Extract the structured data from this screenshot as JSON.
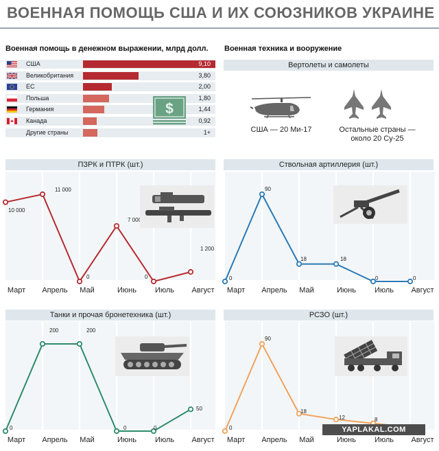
{
  "title": "ВОЕННАЯ ПОМОЩЬ США И ИХ СОЮЗНИКОВ УКРАИНЕ",
  "money": {
    "header": "Военная помощь в денежном выражении, млрд долл.",
    "rows": [
      {
        "country": "США",
        "value": "9,10",
        "num": 9.1,
        "color": "#b52a31",
        "flag": "us-flag-icon"
      },
      {
        "country": "Великобритания",
        "value": "3,80",
        "num": 3.8,
        "color": "#b52a31",
        "flag": "uk-flag-icon"
      },
      {
        "country": "ЕС",
        "value": "2,00",
        "num": 2.0,
        "color": "#b52a31",
        "flag": "eu-flag-icon"
      },
      {
        "country": "Польша",
        "value": "1,80",
        "num": 1.8,
        "color": "#d4675e",
        "flag": "poland-flag-icon"
      },
      {
        "country": "Германия",
        "value": "1,44",
        "num": 1.44,
        "color": "#d4675e",
        "flag": "germany-flag-icon"
      },
      {
        "country": "Канада",
        "value": "0,92",
        "num": 0.92,
        "color": "#d4675e",
        "flag": "canada-flag-icon"
      },
      {
        "country": "Другие страны",
        "value": "1+",
        "num": 1.0,
        "color": "#d4675e",
        "flag": ""
      }
    ]
  },
  "equipment": {
    "header": "Военная техника и вооружение",
    "band": "Вертолеты и самолеты",
    "usa_caption": "США — 20 Ми-17",
    "others_line1": "Остальные страны —",
    "others_line2": "около 20 Су-25"
  },
  "watermark": "YAPLAKAL.COM",
  "chart_data": [
    {
      "type": "line",
      "title": "ПЗРК и ПТРК (шт.)",
      "categories": [
        "Март",
        "Апрель",
        "Май",
        "Июнь",
        "Июль",
        "Август"
      ],
      "values": [
        10000,
        11000,
        0,
        7000,
        0,
        1200
      ],
      "labels": [
        "10 000",
        "11 000",
        "0",
        "7 000",
        "0",
        "1 200"
      ],
      "color": "#b52a31",
      "ylim": [
        0,
        11000
      ]
    },
    {
      "type": "line",
      "title": "Ствольная артиллерия (шт.)",
      "categories": [
        "Март",
        "Апрель",
        "Май",
        "Июнь",
        "Июль",
        "Август"
      ],
      "values": [
        0,
        90,
        18,
        18,
        0,
        0
      ],
      "labels": [
        "0",
        "90",
        "18",
        "18",
        "0",
        "0"
      ],
      "color": "#2a79b6",
      "ylim": [
        0,
        90
      ]
    },
    {
      "type": "line",
      "title": "Танки и прочая бронетехника (шт.)",
      "categories": [
        "Март",
        "Апрель",
        "Май",
        "Июнь",
        "Июль",
        "Август"
      ],
      "values": [
        0,
        200,
        200,
        0,
        0,
        50
      ],
      "labels": [
        "0",
        "200",
        "200",
        "0",
        "0",
        "50"
      ],
      "color": "#2c8a6a",
      "ylim": [
        0,
        200
      ]
    },
    {
      "type": "line",
      "title": "РСЗО  (шт.)",
      "categories": [
        "Март",
        "Апрель",
        "Май",
        "Июнь",
        "Июль",
        "Август"
      ],
      "values": [
        0,
        90,
        18,
        12,
        8,
        4
      ],
      "labels": [
        "0",
        "90",
        "18",
        "12",
        "8",
        "4"
      ],
      "color": "#f0a25c",
      "ylim": [
        0,
        90
      ]
    }
  ]
}
